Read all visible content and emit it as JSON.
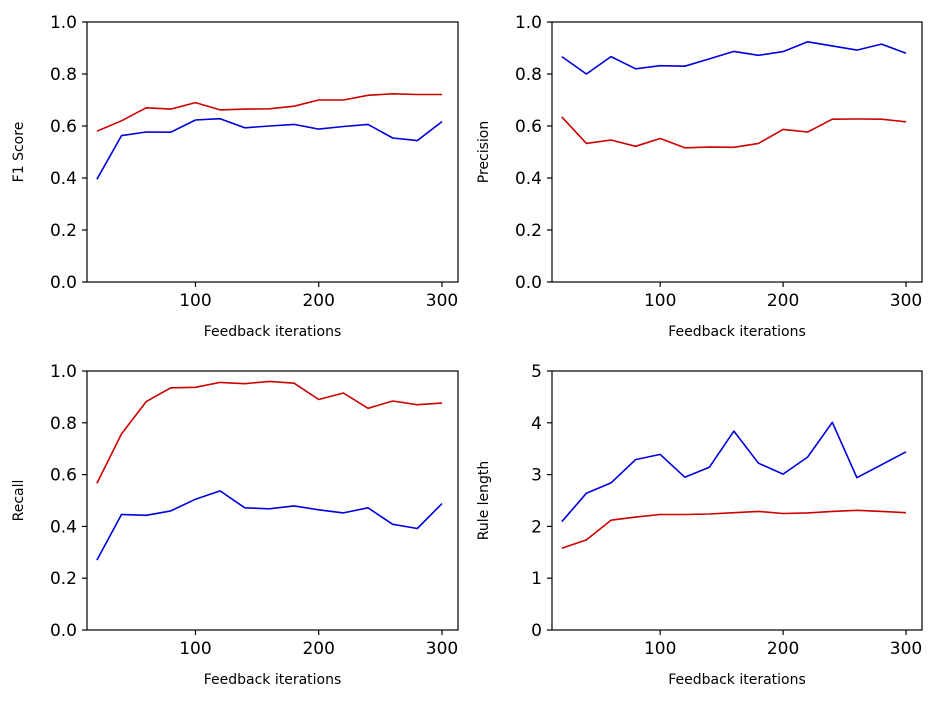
{
  "chart_data": [
    {
      "type": "line",
      "ylabel": "F1 Score",
      "xlabel": "Feedback iterations",
      "xlim": [
        12,
        313
      ],
      "ylim": [
        0,
        1
      ],
      "xticks": [
        100,
        200,
        300
      ],
      "xtick_labels": [
        "100",
        "200",
        "300"
      ],
      "yticks": [
        0,
        0.2,
        0.4,
        0.6,
        0.8,
        1.0
      ],
      "ytick_labels": [
        "0.0",
        "0.2",
        "0.4",
        "0.6",
        "0.8",
        "1.0"
      ],
      "x": [
        20,
        40,
        60,
        80,
        100,
        120,
        140,
        160,
        180,
        200,
        220,
        240,
        260,
        280,
        300
      ],
      "series": [
        {
          "name": "red",
          "color": "#cc0000",
          "values": [
            0.58,
            0.62,
            0.67,
            0.665,
            0.69,
            0.662,
            0.665,
            0.666,
            0.676,
            0.7,
            0.7,
            0.718,
            0.724,
            0.721,
            0.721
          ]
        },
        {
          "name": "blue",
          "color": "#0000dd",
          "values": [
            0.395,
            0.563,
            0.577,
            0.576,
            0.623,
            0.628,
            0.593,
            0.6,
            0.606,
            0.588,
            0.598,
            0.606,
            0.554,
            0.544,
            0.617
          ]
        }
      ]
    },
    {
      "type": "line",
      "ylabel": "Precision",
      "xlabel": "Feedback iterations",
      "xlim": [
        12,
        313
      ],
      "ylim": [
        0,
        1
      ],
      "xticks": [
        100,
        200,
        300
      ],
      "xtick_labels": [
        "100",
        "200",
        "300"
      ],
      "yticks": [
        0,
        0.2,
        0.4,
        0.6,
        0.8,
        1.0
      ],
      "ytick_labels": [
        "0.0",
        "0.2",
        "0.4",
        "0.6",
        "0.8",
        "1.0"
      ],
      "x": [
        20,
        40,
        60,
        80,
        100,
        120,
        140,
        160,
        180,
        200,
        220,
        240,
        260,
        280,
        300
      ],
      "series": [
        {
          "name": "red",
          "color": "#cc0000",
          "values": [
            0.635,
            0.533,
            0.546,
            0.522,
            0.552,
            0.516,
            0.519,
            0.518,
            0.533,
            0.587,
            0.577,
            0.626,
            0.627,
            0.626,
            0.616
          ]
        },
        {
          "name": "blue",
          "color": "#0000dd",
          "values": [
            0.867,
            0.8,
            0.867,
            0.82,
            0.832,
            0.83,
            0.858,
            0.887,
            0.872,
            0.886,
            0.924,
            0.908,
            0.892,
            0.915,
            0.88
          ]
        }
      ]
    },
    {
      "type": "line",
      "ylabel": "Recall",
      "xlabel": "Feedback iterations",
      "xlim": [
        12,
        313
      ],
      "ylim": [
        0,
        1
      ],
      "xticks": [
        100,
        200,
        300
      ],
      "xtick_labels": [
        "100",
        "200",
        "300"
      ],
      "yticks": [
        0,
        0.2,
        0.4,
        0.6,
        0.8,
        1.0
      ],
      "ytick_labels": [
        "0.0",
        "0.2",
        "0.4",
        "0.6",
        "0.8",
        "1.0"
      ],
      "x": [
        20,
        40,
        60,
        80,
        100,
        120,
        140,
        160,
        180,
        200,
        220,
        240,
        260,
        280,
        300
      ],
      "series": [
        {
          "name": "red",
          "color": "#cc0000",
          "values": [
            0.566,
            0.757,
            0.882,
            0.935,
            0.937,
            0.956,
            0.951,
            0.96,
            0.953,
            0.89,
            0.915,
            0.856,
            0.884,
            0.87,
            0.876
          ]
        },
        {
          "name": "blue",
          "color": "#0000dd",
          "values": [
            0.27,
            0.446,
            0.443,
            0.46,
            0.505,
            0.537,
            0.472,
            0.468,
            0.479,
            0.464,
            0.452,
            0.472,
            0.408,
            0.392,
            0.488
          ]
        }
      ]
    },
    {
      "type": "line",
      "ylabel": "Rule length",
      "xlabel": "Feedback iterations",
      "xlim": [
        12,
        313
      ],
      "ylim": [
        0,
        5
      ],
      "xticks": [
        100,
        200,
        300
      ],
      "xtick_labels": [
        "100",
        "200",
        "300"
      ],
      "yticks": [
        0,
        1,
        2,
        3,
        4,
        5
      ],
      "ytick_labels": [
        "0",
        "1",
        "2",
        "3",
        "4",
        "5"
      ],
      "x": [
        20,
        40,
        60,
        80,
        100,
        120,
        140,
        160,
        180,
        200,
        220,
        240,
        260,
        280,
        300
      ],
      "series": [
        {
          "name": "red",
          "color": "#cc0000",
          "values": [
            1.58,
            1.74,
            2.12,
            2.18,
            2.23,
            2.23,
            2.24,
            2.265,
            2.29,
            2.25,
            2.26,
            2.29,
            2.31,
            2.29,
            2.265
          ]
        },
        {
          "name": "blue",
          "color": "#0000dd",
          "values": [
            2.09,
            2.64,
            2.84,
            3.29,
            3.39,
            2.95,
            3.14,
            3.84,
            3.22,
            3.01,
            3.34,
            4.01,
            2.94,
            3.19,
            3.44
          ]
        }
      ]
    }
  ]
}
